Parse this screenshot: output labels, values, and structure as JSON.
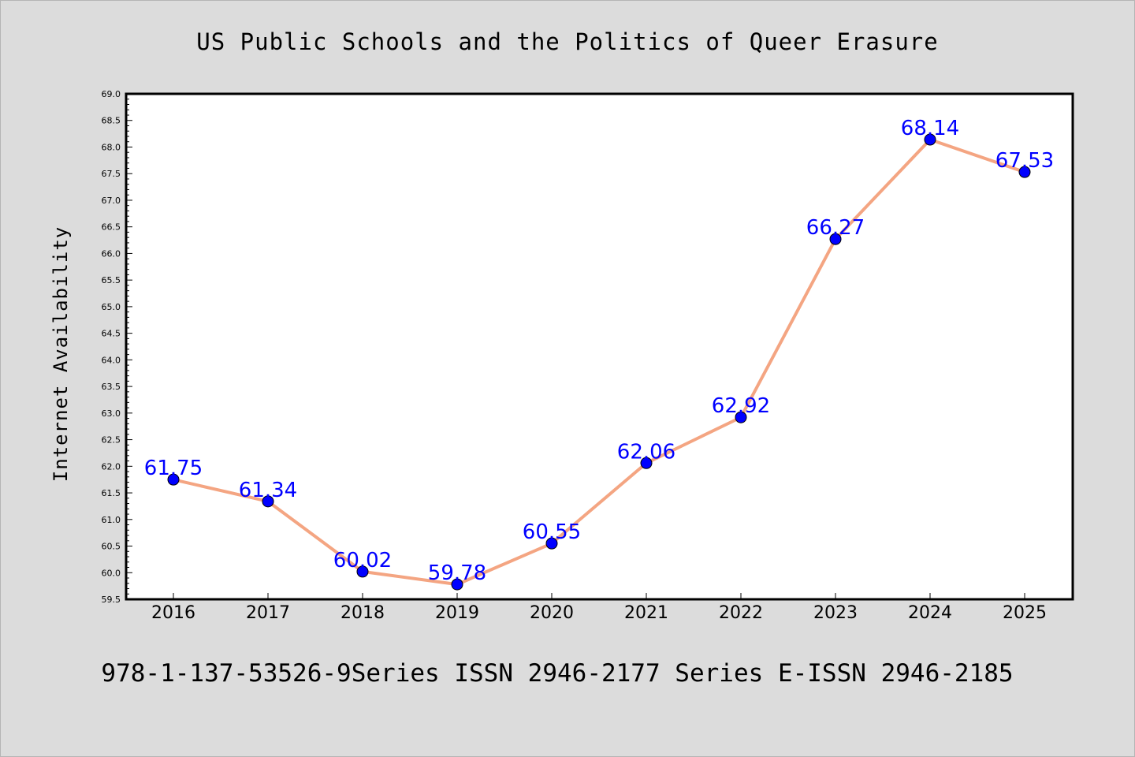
{
  "chart_data": {
    "type": "line",
    "title": "US Public Schools and the Politics of Queer Erasure",
    "xlabel": "",
    "ylabel": "Internet Availability",
    "categories": [
      "2016",
      "2017",
      "2018",
      "2019",
      "2020",
      "2021",
      "2022",
      "2023",
      "2024",
      "2025"
    ],
    "series": [
      {
        "values": [
          61.75,
          61.34,
          60.02,
          59.78,
          60.55,
          62.06,
          62.92,
          66.27,
          68.14,
          67.53
        ],
        "labels": [
          "61.75",
          "61.34",
          "60.02",
          "59.78",
          "60.55",
          "62.06",
          "62.92",
          "66.27",
          "68.14",
          "67.53"
        ],
        "line_color": "#f4a582",
        "marker_color": "#0000ff"
      }
    ],
    "ylim": [
      59.5,
      69.0
    ],
    "yticks": [
      "59.5",
      "60.0",
      "60.5",
      "61.0",
      "61.5",
      "62.0",
      "62.5",
      "63.0",
      "63.5",
      "64.0",
      "64.5",
      "65.0",
      "65.5",
      "66.0",
      "66.5",
      "67.0",
      "67.5",
      "68.0",
      "68.5",
      "69.0"
    ],
    "grid": false,
    "legend": "none",
    "label_color": "#0000ff",
    "background_color": "#dcdcdc",
    "plot_background": "#ffffff"
  },
  "footer": "978-1-137-53526-9Series ISSN 2946-2177 Series E-ISSN 2946-2185"
}
